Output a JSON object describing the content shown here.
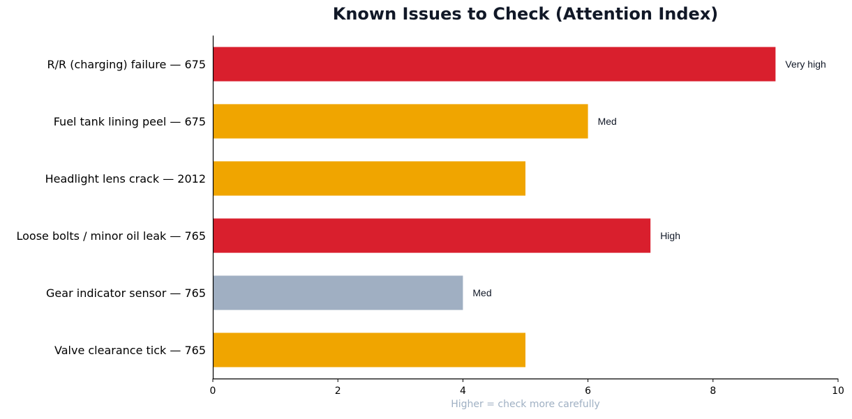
{
  "chart_data": {
    "type": "bar",
    "orientation": "horizontal",
    "title": "Known Issues to Check (Attention Index)",
    "xlabel": "Higher = check more carefully",
    "ylabel": "",
    "xlim": [
      0,
      10
    ],
    "xticks": [
      0,
      2,
      4,
      6,
      8,
      10
    ],
    "grid": false,
    "categories": [
      "R/R (charging) failure — 675",
      "Fuel tank lining peel — 675",
      "Headlight lens crack — 2012",
      "Loose bolts / minor oil leak — 765",
      "Gear indicator sensor — 765",
      "Valve clearance tick — 765"
    ],
    "values": [
      9,
      6,
      5,
      7,
      4,
      5
    ],
    "bar_colors": [
      "#d91f2d",
      "#f0a500",
      "#f0a500",
      "#d91f2d",
      "#a0afc2",
      "#f0a500"
    ],
    "data_labels": [
      "Very high",
      "Med",
      "",
      "High",
      "Med",
      ""
    ]
  }
}
